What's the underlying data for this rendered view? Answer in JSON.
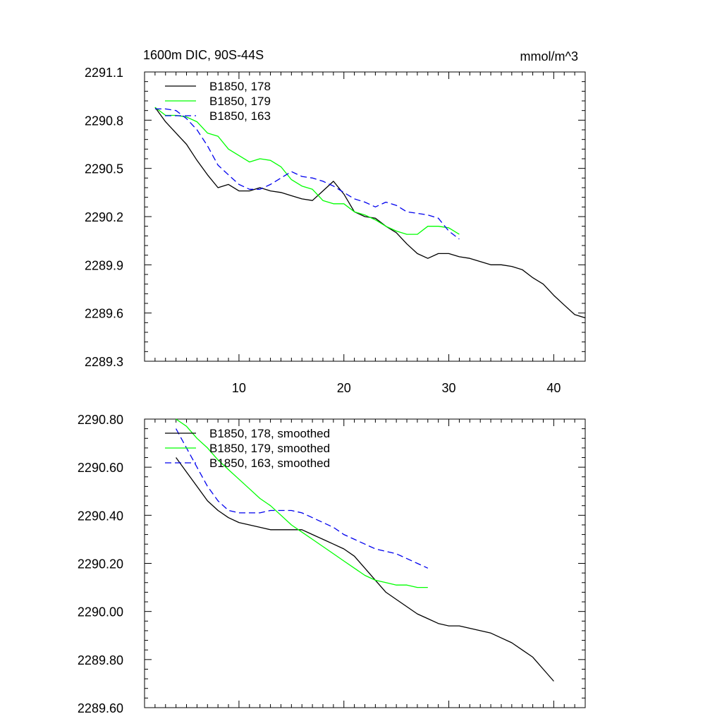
{
  "chart_data": [
    {
      "type": "line",
      "title": "1600m DIC, 90S-44S",
      "units_label": "mmol/m^3",
      "xlim": [
        1,
        43
      ],
      "ylim": [
        2289.3,
        2291.1
      ],
      "x_ticks": [
        10,
        20,
        30,
        40
      ],
      "y_ticks": [
        "2289.3",
        "2289.6",
        "2289.9",
        "2290.2",
        "2290.5",
        "2290.8",
        "2291.1"
      ],
      "grid": false,
      "legend_position": "top-left",
      "series": [
        {
          "name": "B1850, 178",
          "color": "#000000",
          "dash": "solid",
          "x": [
            2,
            3,
            4,
            5,
            6,
            7,
            8,
            9,
            10,
            11,
            12,
            13,
            14,
            15,
            16,
            17,
            18,
            19,
            20,
            21,
            22,
            23,
            24,
            25,
            26,
            27,
            28,
            29,
            30,
            31,
            32,
            33,
            34,
            35,
            36,
            37,
            38,
            39,
            40,
            41,
            42,
            43
          ],
          "y": [
            2290.88,
            2290.79,
            2290.72,
            2290.65,
            2290.55,
            2290.46,
            2290.38,
            2290.4,
            2290.36,
            2290.36,
            2290.38,
            2290.36,
            2290.35,
            2290.33,
            2290.31,
            2290.3,
            2290.36,
            2290.42,
            2290.34,
            2290.23,
            2290.2,
            2290.19,
            2290.14,
            2290.1,
            2290.03,
            2289.97,
            2289.94,
            2289.97,
            2289.97,
            2289.95,
            2289.94,
            2289.92,
            2289.9,
            2289.9,
            2289.89,
            2289.87,
            2289.82,
            2289.78,
            2289.71,
            2289.65,
            2289.59,
            2289.57
          ]
        },
        {
          "name": "B1850, 179",
          "color": "#00ff00",
          "dash": "solid",
          "x": [
            2,
            3,
            4,
            5,
            6,
            7,
            8,
            9,
            10,
            11,
            12,
            13,
            14,
            15,
            16,
            17,
            18,
            19,
            20,
            21,
            22,
            23,
            24,
            25,
            26,
            27,
            28,
            29,
            30,
            31
          ],
          "y": [
            2290.88,
            2290.83,
            2290.83,
            2290.82,
            2290.79,
            2290.72,
            2290.7,
            2290.62,
            2290.58,
            2290.54,
            2290.56,
            2290.55,
            2290.51,
            2290.43,
            2290.39,
            2290.37,
            2290.3,
            2290.28,
            2290.28,
            2290.23,
            2290.21,
            2290.18,
            2290.14,
            2290.11,
            2290.09,
            2290.09,
            2290.14,
            2290.14,
            2290.13,
            2290.09
          ]
        },
        {
          "name": "B1850, 163",
          "color": "#0000ee",
          "dash": "dashed",
          "x": [
            2,
            3,
            4,
            5,
            6,
            7,
            8,
            9,
            10,
            11,
            12,
            13,
            14,
            15,
            16,
            17,
            18,
            19,
            20,
            21,
            22,
            23,
            24,
            25,
            26,
            27,
            28,
            29,
            30,
            31
          ],
          "y": [
            2290.87,
            2290.87,
            2290.86,
            2290.81,
            2290.74,
            2290.64,
            2290.52,
            2290.46,
            2290.4,
            2290.37,
            2290.37,
            2290.4,
            2290.44,
            2290.48,
            2290.45,
            2290.44,
            2290.42,
            2290.39,
            2290.35,
            2290.31,
            2290.29,
            2290.26,
            2290.29,
            2290.27,
            2290.23,
            2290.22,
            2290.21,
            2290.19,
            2290.11,
            2290.06
          ]
        }
      ]
    },
    {
      "type": "line",
      "xlim": [
        1,
        43
      ],
      "ylim": [
        2289.6,
        2290.8
      ],
      "x_ticks": [
        10,
        20,
        30,
        40
      ],
      "y_ticks": [
        "2289.60",
        "2289.80",
        "2290.00",
        "2290.20",
        "2290.40",
        "2290.60",
        "2290.80"
      ],
      "grid": false,
      "legend_position": "top-left",
      "series": [
        {
          "name": "B1850, 178, smoothed",
          "color": "#000000",
          "dash": "solid",
          "x": [
            4,
            5,
            6,
            7,
            8,
            9,
            10,
            11,
            12,
            13,
            14,
            15,
            16,
            17,
            18,
            19,
            20,
            21,
            22,
            23,
            24,
            25,
            26,
            27,
            28,
            29,
            30,
            31,
            32,
            33,
            34,
            35,
            36,
            37,
            38,
            39,
            40
          ],
          "y": [
            2290.64,
            2290.58,
            2290.52,
            2290.46,
            2290.42,
            2290.39,
            2290.37,
            2290.36,
            2290.35,
            2290.34,
            2290.34,
            2290.34,
            2290.34,
            2290.32,
            2290.3,
            2290.28,
            2290.26,
            2290.23,
            2290.18,
            2290.13,
            2290.08,
            2290.05,
            2290.02,
            2289.99,
            2289.97,
            2289.95,
            2289.94,
            2289.94,
            2289.93,
            2289.92,
            2289.91,
            2289.89,
            2289.87,
            2289.84,
            2289.81,
            2289.76,
            2289.71
          ]
        },
        {
          "name": "B1850, 179, smoothed",
          "color": "#00ff00",
          "dash": "solid",
          "x": [
            4,
            5,
            6,
            7,
            8,
            9,
            10,
            11,
            12,
            13,
            14,
            15,
            16,
            17,
            18,
            19,
            20,
            21,
            22,
            23,
            24,
            25,
            26,
            27,
            28
          ],
          "y": [
            2290.8,
            2290.77,
            2290.72,
            2290.68,
            2290.63,
            2290.59,
            2290.55,
            2290.51,
            2290.47,
            2290.44,
            2290.4,
            2290.36,
            2290.33,
            2290.3,
            2290.27,
            2290.24,
            2290.21,
            2290.18,
            2290.15,
            2290.13,
            2290.12,
            2290.11,
            2290.11,
            2290.1,
            2290.1
          ]
        },
        {
          "name": "B1850, 163, smoothed",
          "color": "#0000ee",
          "dash": "dashed",
          "x": [
            4,
            5,
            6,
            7,
            8,
            9,
            10,
            11,
            12,
            13,
            14,
            15,
            16,
            17,
            18,
            19,
            20,
            21,
            22,
            23,
            24,
            25,
            26,
            27,
            28
          ],
          "y": [
            2290.76,
            2290.68,
            2290.6,
            2290.52,
            2290.46,
            2290.42,
            2290.41,
            2290.41,
            2290.41,
            2290.42,
            2290.42,
            2290.42,
            2290.41,
            2290.39,
            2290.37,
            2290.35,
            2290.32,
            2290.3,
            2290.28,
            2290.26,
            2290.25,
            2290.24,
            2290.22,
            2290.2,
            2290.18
          ]
        }
      ]
    }
  ]
}
